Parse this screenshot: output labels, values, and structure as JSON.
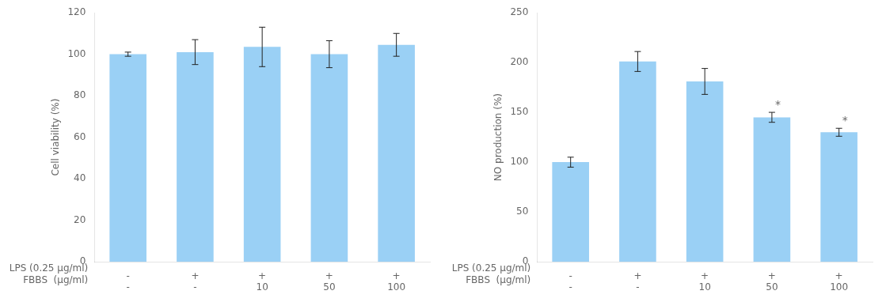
{
  "chart_data": [
    {
      "type": "bar",
      "y_label": "Cell viability (%)",
      "categories": [
        [
          "-",
          "-"
        ],
        [
          "+",
          "-"
        ],
        [
          "+",
          "10"
        ],
        [
          "+",
          "50"
        ],
        [
          "+",
          "100"
        ]
      ],
      "values": [
        100,
        101,
        103.5,
        100,
        104.5
      ],
      "errors": [
        1.0,
        6.0,
        9.5,
        6.5,
        5.5
      ],
      "ylim": [
        0,
        120
      ],
      "yticks": [
        0,
        20,
        40,
        60,
        80,
        100,
        120
      ],
      "grid": false,
      "annotations": [
        {
          "text": "LPS (0.25 μg/ml)",
          "row": 0
        },
        {
          "text": "FBBS  (μg/ml)",
          "row": 1
        }
      ]
    },
    {
      "type": "bar",
      "y_label": "NO production (%)",
      "categories": [
        [
          "-",
          "-"
        ],
        [
          "+",
          "-"
        ],
        [
          "+",
          "10"
        ],
        [
          "+",
          "50"
        ],
        [
          "+",
          "100"
        ]
      ],
      "values": [
        100,
        201,
        181,
        145,
        130
      ],
      "errors": [
        5.0,
        10.0,
        13.0,
        5.0,
        4.0
      ],
      "ylim": [
        0,
        250
      ],
      "yticks": [
        0,
        50,
        100,
        150,
        200,
        250
      ],
      "grid": false,
      "annotations": [
        {
          "text": "LPS (0.25 μg/ml)",
          "row": 0
        },
        {
          "text": "FBBS  (μg/ml)",
          "row": 1
        },
        {
          "text": "*",
          "index": 3
        },
        {
          "text": "*",
          "index": 4
        }
      ]
    }
  ]
}
